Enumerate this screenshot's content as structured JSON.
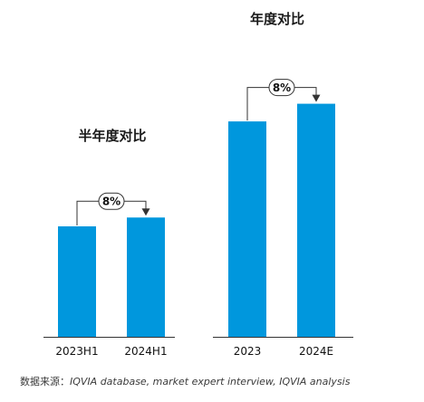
{
  "chart_data": [
    {
      "type": "bar",
      "title": "半年度对比",
      "categories": [
        "2023H1",
        "2024H1"
      ],
      "values": [
        100,
        108
      ],
      "ylim": [
        0,
        250
      ],
      "annotation": "8%",
      "grid": false,
      "color": "#0097DD"
    },
    {
      "type": "bar",
      "title": "年度对比",
      "categories": [
        "2023",
        "2024E"
      ],
      "values": [
        195,
        211
      ],
      "ylim": [
        0,
        250
      ],
      "annotation": "8%",
      "grid": false,
      "color": "#0097DD"
    }
  ],
  "source": {
    "label": "数据来源：",
    "text": "IQVIA database, market expert interview, IQVIA analysis"
  }
}
